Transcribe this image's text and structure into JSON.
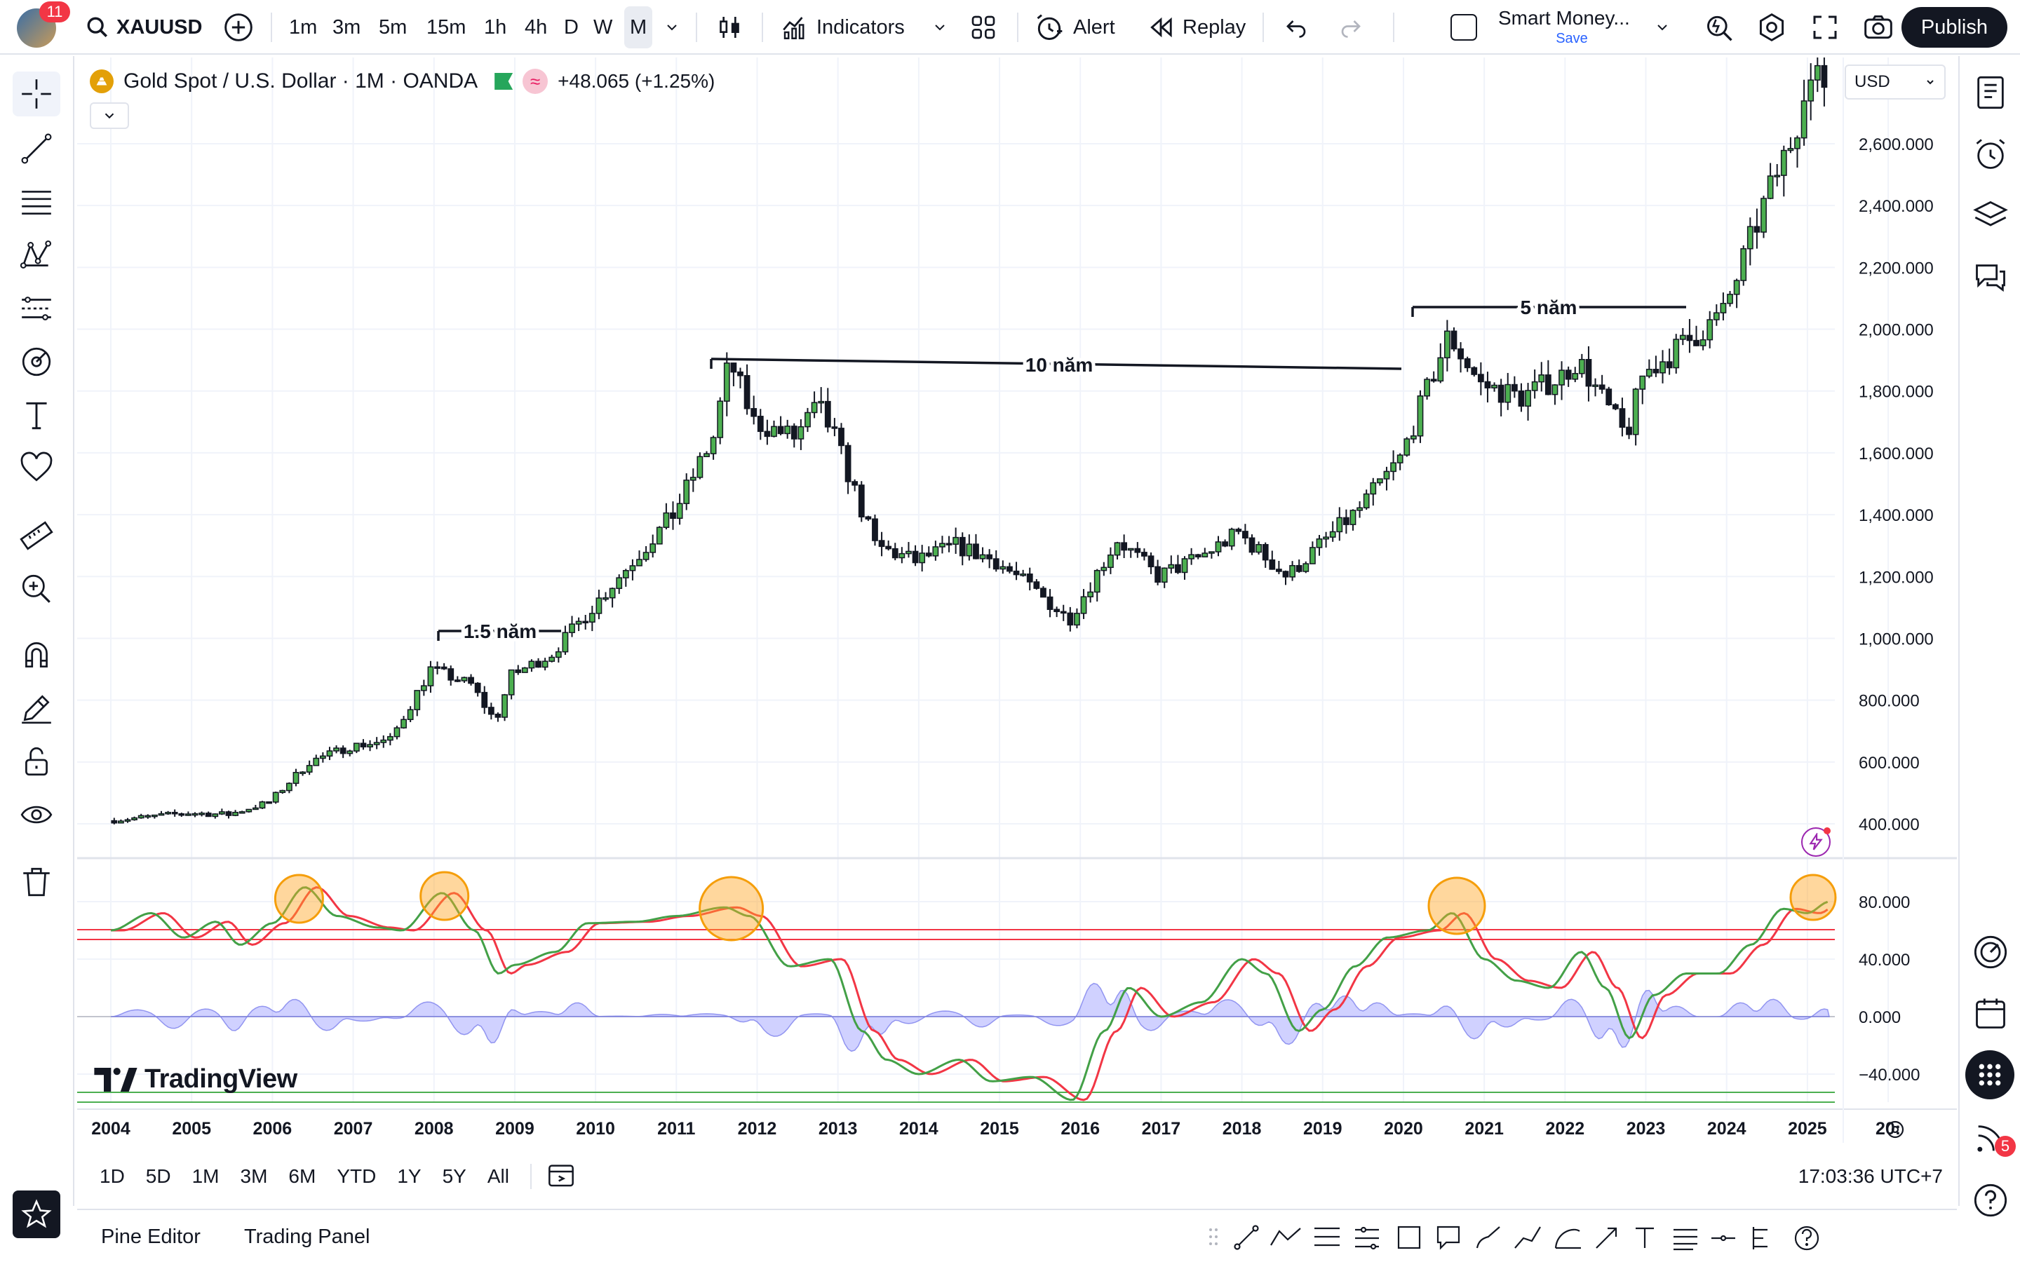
{
  "topbar": {
    "notification_count": "11",
    "symbol": "XAUUSD",
    "timeframes": [
      "1m",
      "3m",
      "5m",
      "15m",
      "1h",
      "4h",
      "D",
      "W",
      "M"
    ],
    "active_timeframe": "M",
    "indicators_label": "Indicators",
    "alert_label": "Alert",
    "replay_label": "Replay",
    "layout_name": "Smart Money...",
    "layout_save": "Save",
    "publish_label": "Publish"
  },
  "legend": {
    "title": "Gold Spot / U.S. Dollar · 1M · OANDA",
    "change": "+48.065 (+1.25%)",
    "currency": "USD"
  },
  "annotations": {
    "label_1": "1.5 năm",
    "label_2": "10 năm",
    "label_3": "5 năm"
  },
  "chart_data": {
    "type": "candlestick",
    "x_years": [
      "2004",
      "2005",
      "2006",
      "2007",
      "2008",
      "2009",
      "2010",
      "2011",
      "2012",
      "2013",
      "2014",
      "2015",
      "2016",
      "2017",
      "2018",
      "2019",
      "2020",
      "2021",
      "2022",
      "2023",
      "2024",
      "2025",
      "20:"
    ],
    "y_ticks": [
      "2,600.000",
      "2,400.000",
      "2,200.000",
      "2,000.000",
      "1,800.000",
      "1,600.000",
      "1,400.000",
      "1,200.000",
      "1,000.000",
      "800.000",
      "600.000",
      "400.000"
    ],
    "price_path": [
      [
        2004.0,
        410
      ],
      [
        2005.0,
        435
      ],
      [
        2005.5,
        430
      ],
      [
        2006.0,
        470
      ],
      [
        2006.5,
        600
      ],
      [
        2007.0,
        650
      ],
      [
        2007.5,
        670
      ],
      [
        2008.0,
        900
      ],
      [
        2008.5,
        850
      ],
      [
        2008.8,
        730
      ],
      [
        2009.0,
        880
      ],
      [
        2009.5,
        950
      ],
      [
        2010.0,
        1100
      ],
      [
        2010.5,
        1250
      ],
      [
        2011.0,
        1400
      ],
      [
        2011.5,
        1650
      ],
      [
        2011.7,
        1900
      ],
      [
        2012.0,
        1700
      ],
      [
        2012.5,
        1650
      ],
      [
        2012.8,
        1750
      ],
      [
        2013.0,
        1650
      ],
      [
        2013.5,
        1300
      ],
      [
        2014.0,
        1250
      ],
      [
        2014.5,
        1300
      ],
      [
        2015.0,
        1250
      ],
      [
        2015.5,
        1150
      ],
      [
        2015.9,
        1060
      ],
      [
        2016.5,
        1320
      ],
      [
        2017.0,
        1200
      ],
      [
        2017.5,
        1260
      ],
      [
        2018.0,
        1340
      ],
      [
        2018.6,
        1200
      ],
      [
        2019.0,
        1300
      ],
      [
        2019.5,
        1420
      ],
      [
        2020.0,
        1580
      ],
      [
        2020.6,
        1980
      ],
      [
        2021.0,
        1820
      ],
      [
        2021.5,
        1780
      ],
      [
        2022.0,
        1850
      ],
      [
        2022.2,
        1900
      ],
      [
        2022.8,
        1650
      ],
      [
        2023.0,
        1850
      ],
      [
        2023.5,
        1950
      ],
      [
        2024.0,
        2050
      ],
      [
        2024.5,
        2400
      ],
      [
        2024.9,
        2650
      ],
      [
        2025.0,
        2800
      ]
    ],
    "indicator_y_ticks": [
      "80.000",
      "40.000",
      "0.000",
      "−40.000"
    ]
  },
  "watermark": "TradingView",
  "rangebar": {
    "ranges": [
      "1D",
      "5D",
      "1M",
      "3M",
      "6M",
      "YTD",
      "1Y",
      "5Y",
      "All"
    ],
    "clock": "17:03:36 UTC+7"
  },
  "bottompanel": {
    "tab_1": "Pine Editor",
    "tab_2": "Trading Panel"
  },
  "rightbar": {
    "badge_count": "5"
  }
}
